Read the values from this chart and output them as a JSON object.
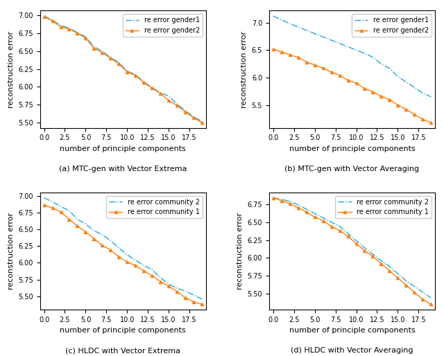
{
  "x": [
    0,
    1,
    2,
    3,
    4,
    5,
    6,
    7,
    8,
    9,
    10,
    11,
    12,
    13,
    14,
    15,
    16,
    17,
    18,
    19
  ],
  "a_gender1": [
    6.99,
    6.93,
    6.86,
    6.82,
    6.76,
    6.7,
    6.56,
    6.5,
    6.41,
    6.34,
    6.22,
    6.17,
    6.07,
    5.99,
    5.92,
    5.87,
    5.76,
    5.67,
    5.58,
    5.52
  ],
  "a_gender2": [
    6.98,
    6.92,
    6.84,
    6.81,
    6.75,
    6.68,
    6.54,
    6.48,
    6.4,
    6.32,
    6.21,
    6.16,
    6.06,
    5.98,
    5.91,
    5.81,
    5.74,
    5.65,
    5.57,
    5.5
  ],
  "b_gender1": [
    7.12,
    7.05,
    6.98,
    6.92,
    6.86,
    6.8,
    6.74,
    6.68,
    6.62,
    6.56,
    6.5,
    6.44,
    6.37,
    6.25,
    6.17,
    6.02,
    5.92,
    5.82,
    5.72,
    5.65
  ],
  "b_gender2": [
    6.52,
    6.47,
    6.41,
    6.37,
    6.28,
    6.23,
    6.17,
    6.1,
    6.04,
    5.95,
    5.9,
    5.8,
    5.74,
    5.66,
    5.6,
    5.5,
    5.42,
    5.33,
    5.24,
    5.18
  ],
  "c_comm2": [
    6.97,
    6.91,
    6.84,
    6.78,
    6.65,
    6.58,
    6.48,
    6.42,
    6.33,
    6.22,
    6.12,
    6.04,
    5.96,
    5.9,
    5.78,
    5.68,
    5.62,
    5.58,
    5.52,
    5.46
  ],
  "c_comm1": [
    6.86,
    6.82,
    6.76,
    6.65,
    6.55,
    6.46,
    6.36,
    6.26,
    6.19,
    6.09,
    6.01,
    5.96,
    5.88,
    5.81,
    5.72,
    5.65,
    5.57,
    5.48,
    5.42,
    5.38
  ],
  "d_comm2": [
    6.84,
    6.82,
    6.79,
    6.74,
    6.68,
    6.62,
    6.56,
    6.5,
    6.44,
    6.34,
    6.24,
    6.14,
    6.05,
    5.96,
    5.88,
    5.78,
    5.68,
    5.6,
    5.52,
    5.44
  ],
  "d_comm1": [
    6.84,
    6.8,
    6.76,
    6.7,
    6.64,
    6.57,
    6.52,
    6.44,
    6.38,
    6.3,
    6.2,
    6.1,
    6.02,
    5.92,
    5.82,
    5.72,
    5.62,
    5.52,
    5.42,
    5.35
  ],
  "color_blue": "#1fa8d9",
  "color_orange": "#ff7f0e",
  "xlabel": "number of principle components",
  "ylabel": "reconstruction error",
  "title_a": "(a) MTC-gen with Vector Extrema",
  "title_b": "(b) MTC-gen with Vector Averaging",
  "title_c": "(c) HLDC with Vector Extrema",
  "title_d": "(d) HLDC with Vector Averaging",
  "legend_a1": "re error gender1",
  "legend_a2": "re error gender2",
  "legend_c1": "re error community 2",
  "legend_c2": "re error community 1"
}
